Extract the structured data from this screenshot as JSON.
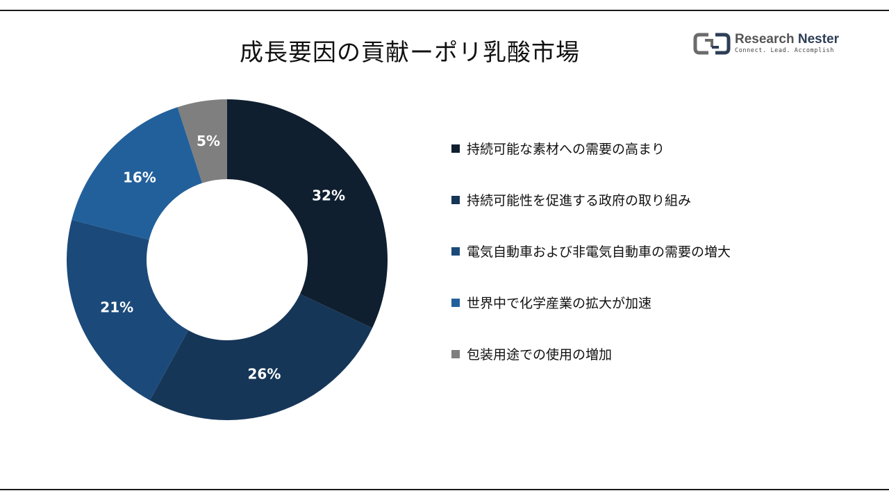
{
  "title": "成長要因の貢献ーポリ乳酸市場",
  "logo": {
    "name_part1": "Research",
    "name_part2": "Nester",
    "tagline": "Connect. Lead. Accomplish"
  },
  "chart_data": {
    "type": "pie",
    "donut": true,
    "title": "成長要因の貢献ーポリ乳酸市場",
    "categories": [
      "持続可能な素材への需要の高まり",
      "持続可能性を促進する政府の取り組み",
      "電気自動車および非電気自動車の需要の増大",
      "世界中で化学産業の拡大が加速",
      "包装用途での使用の増加"
    ],
    "values": [
      32,
      26,
      21,
      16,
      5
    ],
    "labels": [
      "32%",
      "26%",
      "21%",
      "16%",
      "5%"
    ],
    "colors": [
      "#0f1f30",
      "#163658",
      "#1b4a7a",
      "#22609b",
      "#7f7f7f"
    ],
    "legend_position": "right"
  }
}
